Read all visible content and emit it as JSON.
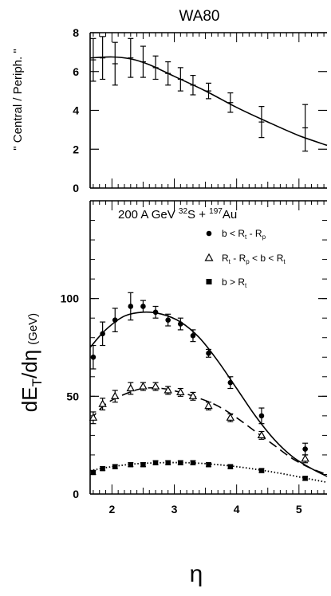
{
  "chart_data": [
    {
      "type": "scatter",
      "title": "WA80",
      "ylabel": "\" Central / Periph. \"",
      "xlim": [
        1.65,
        5.45
      ],
      "ylim": [
        0,
        8
      ],
      "yticks": [
        0,
        2,
        4,
        6,
        8
      ],
      "x_minor_step": 0.1,
      "series": [
        {
          "marker": "none",
          "x": [
            1.7,
            1.85,
            2.05,
            2.3,
            2.5,
            2.7,
            2.9,
            3.1,
            3.3,
            3.55,
            3.9,
            4.4,
            5.1
          ],
          "y": [
            6.6,
            6.7,
            6.4,
            6.7,
            6.5,
            6.2,
            5.9,
            5.6,
            5.3,
            5.0,
            4.4,
            3.4,
            3.1
          ],
          "err": [
            1.1,
            1.1,
            1.1,
            1.0,
            0.8,
            0.6,
            0.6,
            0.6,
            0.5,
            0.4,
            0.5,
            0.8,
            1.2
          ]
        }
      ],
      "fit_curve": {
        "x": [
          1.65,
          2.0,
          2.3,
          2.6,
          3.0,
          3.5,
          4.0,
          4.5,
          5.0,
          5.45
        ],
        "y": [
          6.7,
          6.75,
          6.65,
          6.35,
          5.75,
          5.0,
          4.15,
          3.4,
          2.7,
          2.2
        ]
      }
    },
    {
      "type": "scatter",
      "xlabel": "η",
      "ylabel_main": "dE",
      "ylabel_sub": "T",
      "ylabel_tail": "/dη",
      "ylabel_unit": "(GeV)",
      "annotation": {
        "prefix": "200 A GeV ",
        "sup1": "32",
        "mid": "S + ",
        "sup2": "197",
        "suffix": "Au"
      },
      "xlim": [
        1.65,
        5.45
      ],
      "ylim": [
        0,
        150
      ],
      "xticks": [
        2,
        3,
        4,
        5
      ],
      "yticks": [
        0,
        50,
        100
      ],
      "x_minor_step": 0.1,
      "y_minor_step": 10,
      "legend_position": "top-right",
      "series": [
        {
          "name": "b < R t - R p",
          "legend": {
            "main1": "b < R",
            "sub1": "t",
            "main2": " - R",
            "sub2": "p",
            "main3": ""
          },
          "marker": "filled-circle",
          "curve": "solid",
          "x": [
            1.7,
            1.85,
            2.05,
            2.3,
            2.5,
            2.7,
            2.9,
            3.1,
            3.3,
            3.55,
            3.9,
            4.4,
            5.1
          ],
          "y": [
            70,
            82,
            89,
            96,
            96,
            93,
            89,
            87,
            81,
            72,
            57,
            40,
            23
          ],
          "err": [
            6,
            6,
            6,
            7,
            3,
            3,
            3,
            3,
            3,
            2,
            3,
            4,
            3
          ],
          "fit_curve": {
            "x": [
              1.65,
              1.9,
              2.2,
              2.5,
              2.8,
              3.1,
              3.4,
              3.7,
              4.0,
              4.3,
              4.6,
              4.9,
              5.2,
              5.45
            ],
            "y": [
              75,
              84,
              91,
              93,
              92,
              88,
              80,
              68,
              54,
              40,
              28,
              19,
              13,
              9
            ]
          }
        },
        {
          "name": "R t - R p < b < R t",
          "legend": {
            "main1": "R",
            "sub1": "t",
            "main2": " - R",
            "sub2": "p",
            "main3": " < b < R",
            "sub3": "t"
          },
          "marker": "open-triangle",
          "curve": "dashed",
          "x": [
            1.7,
            1.85,
            2.05,
            2.3,
            2.5,
            2.7,
            2.9,
            3.1,
            3.3,
            3.55,
            3.9,
            4.4,
            5.1
          ],
          "y": [
            39,
            46,
            50,
            54,
            55,
            55,
            53,
            52,
            50,
            45,
            39,
            30,
            18
          ],
          "err": [
            3,
            3,
            3,
            3,
            2,
            2,
            2,
            2,
            2,
            2,
            2,
            2,
            2
          ],
          "fit_curve": {
            "x": [
              1.65,
              1.9,
              2.2,
              2.5,
              2.8,
              3.1,
              3.4,
              3.7,
              4.0,
              4.3,
              4.6,
              4.9,
              5.2,
              5.45
            ],
            "y": [
              38,
              46,
              51,
              54,
              54,
              52,
              49,
              45,
              39,
              32,
              25,
              18,
              13,
              10
            ]
          }
        },
        {
          "name": "b > R t",
          "legend": {
            "main1": "b > R",
            "sub1": "t"
          },
          "marker": "filled-square",
          "curve": "dotted",
          "x": [
            1.7,
            1.85,
            2.05,
            2.3,
            2.5,
            2.7,
            2.9,
            3.1,
            3.3,
            3.55,
            3.9,
            4.4,
            5.1
          ],
          "y": [
            11,
            13,
            14,
            15,
            15,
            16,
            16,
            16,
            16,
            15,
            14,
            12,
            8
          ],
          "err": [
            1,
            1,
            1,
            1,
            1,
            1,
            1,
            1,
            1,
            1,
            1,
            1,
            1
          ],
          "fit_curve": {
            "x": [
              1.65,
              2.0,
              2.4,
              2.8,
              3.2,
              3.6,
              4.0,
              4.4,
              4.8,
              5.2,
              5.45
            ],
            "y": [
              12,
              14,
              15.5,
              16,
              16,
              15.3,
              14,
              12.2,
              10,
              7.5,
              6
            ]
          }
        }
      ]
    }
  ]
}
